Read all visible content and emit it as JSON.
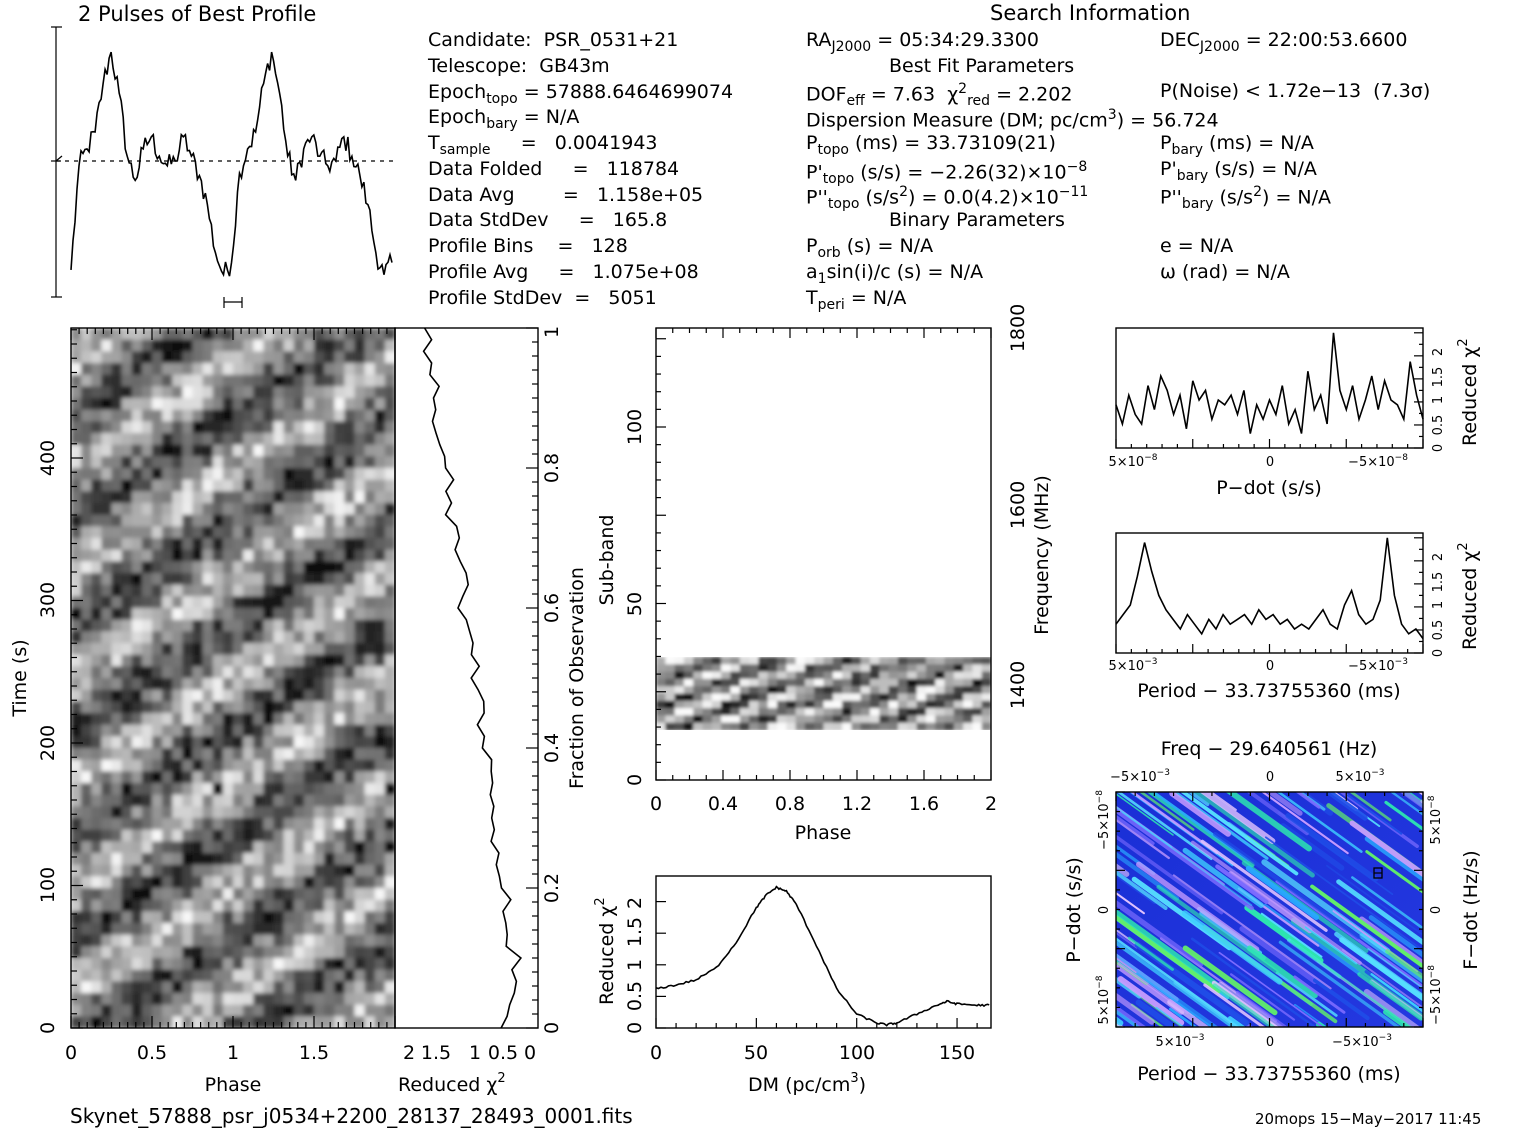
{
  "profile": {
    "title": "2 Pulses of Best Profile"
  },
  "search": {
    "title": "Search Information",
    "candidate": "Candidate:  PSR_0531+21",
    "telescope": "Telescope:  GB43m",
    "epoch_topo": "Epoch",
    "epoch_topo_sub": "topo",
    "epoch_topo_val": "= 57888.6464699074",
    "epoch_bary": "Epoch",
    "epoch_bary_sub": "bary",
    "epoch_bary_val": "= N/A",
    "t_sample": "T",
    "t_sample_sub": "sample",
    "t_sample_val": "=   0.0041943",
    "data_folded": "Data Folded     =   118784",
    "data_avg": "Data Avg        =   1.158e+05",
    "data_std": "Data StdDev     =   165.8",
    "prof_bins": "Profile Bins    =   128",
    "prof_avg": "Profile Avg     =   1.075e+08",
    "prof_std": "Profile StdDev  =   5051",
    "ra": "RA",
    "ra_sub": "J2000",
    "ra_val": "= 05:34:29.3300",
    "dec": "DEC",
    "dec_sub": "J2000",
    "dec_val": "= 22:00:53.6600",
    "best_fit": "Best Fit Parameters",
    "dof": "DOF",
    "dof_sub": "eff",
    "dof_val": "= 7.63",
    "chi": "χ",
    "chi_sup": "2",
    "chi_sub": "red",
    "chi_val": "= 2.202",
    "pnoise": "P(Noise) < 1.72e−13  (7.3σ)",
    "dm_line": "Dispersion Measure (DM; pc/cm",
    "dm_sup": "3",
    "dm_val": ") = 56.724",
    "ptopo": "P",
    "ptopo_sub": "topo",
    "ptopo_val": "(ms) =  33.73109(21)",
    "pbary": "P",
    "pbary_sub": "bary",
    "pbary_val": "(ms) = N/A",
    "pdtopo": "P'",
    "pdtopo_sub": "topo",
    "pdtopo_val": "(s/s) = −2.26(32)×10",
    "pdtopo_exp": "−8",
    "pdbary": "P'",
    "pdbary_sub": "bary",
    "pdbary_val": "(s/s) = N/A",
    "pddtopo": "P''",
    "pddtopo_sub": "topo",
    "pddtopo_val": "(s/s",
    "pddtopo_sup": "2",
    "pddtopo_val2": ") = 0.0(4.2)×10",
    "pddtopo_exp": "−11",
    "pddbary": "P''",
    "pddbary_sub": "bary",
    "pddbary_val": "(s/s",
    "pddbary_sup": "2",
    "pddbary_val2": ") = N/A",
    "binary": "Binary Parameters",
    "porb": "P",
    "porb_sub": "orb",
    "porb_val": "(s) = N/A",
    "ecc": "e = N/A",
    "a1": "a",
    "a1_sub": "1",
    "a1_val": "sin(i)/c (s) = N/A",
    "omega": "ω (rad) = N/A",
    "tperi": "T",
    "tperi_sub": "peri",
    "tperi_val": "= N/A"
  },
  "footer": {
    "filename": "Skynet_57888_psr_j0534+2200_28137_28493_0001.fits",
    "stamp": "20mops 15−May−2017 11:45"
  },
  "chart_data": [
    {
      "name": "pulse-profile",
      "type": "line",
      "title": "2 Pulses of Best Profile",
      "x": [
        0,
        0.05,
        0.1,
        0.15,
        0.2,
        0.25,
        0.3,
        0.35,
        0.4,
        0.45,
        0.5,
        0.55,
        0.6,
        0.65,
        0.7,
        0.75,
        0.8,
        0.85,
        0.9,
        0.95,
        1.0,
        1.05,
        1.1,
        1.15,
        1.2,
        1.25,
        1.3,
        1.35,
        1.4,
        1.45,
        1.5,
        1.55,
        1.6,
        1.65,
        1.7,
        1.75,
        1.8,
        1.85,
        1.9,
        1.95,
        2.0
      ],
      "values": [
        0.05,
        0.48,
        0.55,
        0.62,
        0.82,
        0.95,
        0.78,
        0.52,
        0.42,
        0.55,
        0.6,
        0.52,
        0.48,
        0.5,
        0.6,
        0.52,
        0.44,
        0.32,
        0.12,
        0.03,
        0.08,
        0.45,
        0.55,
        0.62,
        0.82,
        0.95,
        0.78,
        0.52,
        0.42,
        0.55,
        0.6,
        0.52,
        0.48,
        0.5,
        0.6,
        0.52,
        0.44,
        0.32,
        0.12,
        0.03,
        0.08
      ],
      "avg_line": 0.5
    },
    {
      "name": "time-vs-phase",
      "type": "heatmap",
      "xlabel": "Phase",
      "ylabel": "Time (s)",
      "xticks": [
        "0",
        "0.5",
        "1",
        "1.5"
      ],
      "xlim": [
        0,
        2
      ],
      "yticks": [
        "0",
        "100",
        "200",
        "300",
        "400"
      ],
      "ylim": [
        0,
        490
      ]
    },
    {
      "name": "time-reduced-chi2",
      "type": "line",
      "xlabel": "Reduced χ",
      "xlabel_sup": "2",
      "xticks": [
        "2",
        "1.5",
        "1",
        "0.5",
        "0"
      ],
      "ylabel": "Fraction of Observation",
      "yticks": [
        "0",
        "0.2",
        "0.4",
        "0.6",
        "0.8",
        "1"
      ]
    },
    {
      "name": "subband-vs-phase",
      "type": "heatmap",
      "xlabel": "Phase",
      "ylabel": "Sub-band",
      "ylabel2": "Frequency (MHz)",
      "xticks": [
        "0",
        "0.4",
        "0.8",
        "1.2",
        "1.6",
        "2"
      ],
      "yticks": [
        "0",
        "50",
        "100"
      ],
      "ylim": [
        0,
        128
      ],
      "y2ticks": [
        "1400",
        "1600",
        "1800"
      ]
    },
    {
      "name": "dm-curve",
      "type": "line",
      "xlabel": "DM (pc/cm",
      "xlabel_sup": "3",
      "xlabel_end": ")",
      "ylabel": "Reduced χ",
      "ylabel_sup": "2",
      "xticks": [
        "0",
        "50",
        "100",
        "150"
      ],
      "yticks": [
        "0",
        "0.5",
        "1",
        "1.5",
        "2"
      ],
      "xlim": [
        0,
        167
      ],
      "ylim": [
        0,
        2.4
      ],
      "x": [
        0,
        10,
        20,
        30,
        40,
        50,
        55,
        60,
        65,
        70,
        80,
        90,
        100,
        110,
        115,
        120,
        130,
        140,
        145,
        150,
        160,
        167
      ],
      "values": [
        0.62,
        0.68,
        0.76,
        0.95,
        1.35,
        1.9,
        2.1,
        2.22,
        2.16,
        1.95,
        1.3,
        0.62,
        0.22,
        0.08,
        0.05,
        0.08,
        0.22,
        0.36,
        0.42,
        0.38,
        0.36,
        0.36
      ]
    },
    {
      "name": "pdot-curve",
      "type": "line",
      "xlabel": "P−dot (s/s)",
      "ylabel": "Reduced χ",
      "ylabel_sup": "2",
      "xticks": [
        "5×10",
        "0",
        "−5×10"
      ],
      "xticks_exp": "−8",
      "yticks": [
        "0",
        "0.5",
        "1",
        "1.5",
        "2"
      ],
      "ylim": [
        0,
        2.5
      ],
      "values": [
        0.9,
        0.5,
        1.1,
        0.7,
        0.5,
        1.3,
        0.8,
        1.5,
        1.2,
        0.7,
        1.1,
        0.4,
        1.4,
        1.0,
        1.2,
        0.6,
        1.0,
        0.9,
        1.1,
        0.7,
        1.2,
        0.3,
        0.9,
        0.6,
        1.0,
        0.7,
        1.3,
        0.5,
        0.8,
        0.3,
        1.6,
        0.8,
        1.1,
        0.5,
        2.4,
        1.2,
        0.8,
        1.3,
        0.6,
        1.0,
        1.5,
        0.8,
        1.4,
        1.0,
        0.9,
        0.6,
        1.8,
        1.1,
        0.6
      ]
    },
    {
      "name": "period-curve",
      "type": "line",
      "xlabel": "Period − 33.73755360 (ms)",
      "ylabel": "Reduced χ",
      "ylabel_sup": "2",
      "xticks": [
        "5×10",
        "0",
        "−5×10"
      ],
      "xticks_exp": "−3",
      "yticks": [
        "0",
        "0.5",
        "1",
        "1.5",
        "2"
      ],
      "ylim": [
        0,
        2.5
      ],
      "values": [
        0.6,
        0.8,
        1.0,
        1.6,
        2.3,
        1.7,
        1.2,
        0.9,
        0.7,
        0.5,
        0.8,
        0.6,
        0.4,
        0.7,
        0.5,
        0.8,
        0.6,
        0.7,
        0.8,
        0.6,
        0.9,
        0.7,
        0.8,
        0.6,
        0.7,
        0.5,
        0.6,
        0.5,
        0.7,
        0.9,
        0.6,
        0.5,
        1.0,
        1.3,
        0.8,
        0.6,
        0.7,
        1.1,
        2.4,
        1.2,
        0.6,
        0.4,
        0.5,
        0.3
      ]
    },
    {
      "name": "period-pdot-plane",
      "type": "heatmap",
      "title": "Freq − 29.640561 (Hz)",
      "xlabel": "Period − 33.73755360 (ms)",
      "ylabel": "P−dot (s/s)",
      "ylabel2": "F−dot (Hz/s)",
      "xticks": [
        "5×10",
        "0",
        "−5×10"
      ],
      "xticks_exp": "−3",
      "top_xticks": [
        "−5×10",
        "0",
        "5×10"
      ],
      "top_xticks_exp": "−3",
      "yticks": [
        "5×10",
        "0",
        "−5×10"
      ],
      "yticks_exp": "−8",
      "y2ticks": [
        "−5×10",
        "0",
        "5×10"
      ],
      "y2ticks_exp": "−8"
    }
  ]
}
